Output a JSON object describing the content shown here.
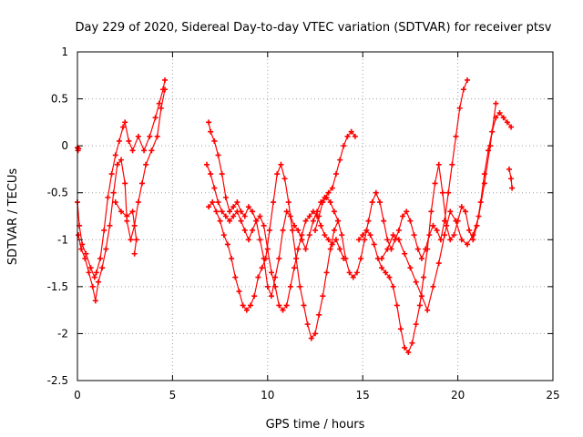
{
  "chart_data": {
    "type": "scatter",
    "title": "Day 229 of 2020, Sidereal Day-to-day VTEC variation (SDTVAR) for receiver ptsv",
    "xlabel": "GPS time / hours",
    "ylabel": "SDTVAR / TECUs",
    "xlim": [
      0,
      25
    ],
    "ylim": [
      -2.5,
      1
    ],
    "xticks": [
      0,
      5,
      10,
      15,
      20,
      25
    ],
    "yticks": [
      -2.5,
      -2,
      -1.5,
      -1,
      -0.5,
      0,
      0.5,
      1
    ],
    "xtick_labels": [
      "0",
      "5",
      "10",
      "15",
      "20",
      "25"
    ],
    "ytick_labels": [
      "-2.5",
      "-2",
      "-1.5",
      "-1",
      "-0.5",
      "0",
      "0.5",
      "1"
    ],
    "grid": true,
    "marker": "plus",
    "color": "#ff0000",
    "series": [
      {
        "name": "s1",
        "x": [
          0.0,
          0.1,
          0.25,
          0.45,
          0.7,
          0.9,
          1.0,
          1.2,
          1.4,
          1.6,
          1.8,
          2.0,
          2.2,
          2.4,
          2.5,
          2.7,
          2.9,
          3.2,
          3.5,
          3.8,
          4.1,
          4.3,
          4.5,
          4.6
        ],
        "y": [
          -0.6,
          -0.85,
          -1.05,
          -1.15,
          -1.3,
          -1.4,
          -1.35,
          -1.2,
          -0.9,
          -0.55,
          -0.3,
          -0.1,
          0.05,
          0.2,
          0.25,
          0.05,
          -0.05,
          0.1,
          -0.05,
          0.1,
          0.3,
          0.45,
          0.6,
          0.7
        ]
      },
      {
        "name": "s2",
        "x": [
          0.05,
          0.2,
          0.4,
          0.6,
          0.8,
          0.95,
          1.1,
          1.3,
          1.5,
          1.7,
          1.9,
          2.1,
          2.3,
          2.5,
          2.6,
          2.8,
          3.0,
          3.2,
          3.4,
          3.6,
          3.9,
          4.2,
          4.4,
          4.6
        ],
        "y": [
          -0.95,
          -1.1,
          -1.2,
          -1.35,
          -1.5,
          -1.65,
          -1.45,
          -1.3,
          -1.1,
          -0.85,
          -0.5,
          -0.2,
          -0.15,
          -0.4,
          -0.8,
          -1.0,
          -0.85,
          -0.6,
          -0.4,
          -0.2,
          -0.05,
          0.1,
          0.4,
          0.6
        ]
      },
      {
        "name": "s3",
        "x": [
          0.0,
          0.03,
          0.06
        ],
        "y": [
          -0.02,
          -0.05,
          -0.03
        ]
      },
      {
        "name": "s4",
        "x": [
          2.0,
          2.3,
          2.6,
          2.9,
          3.1,
          3.0
        ],
        "y": [
          -0.6,
          -0.7,
          -0.75,
          -0.7,
          -1.0,
          -1.15
        ]
      },
      {
        "name": "s5",
        "x": [
          6.9,
          7.0,
          7.2,
          7.4,
          7.6,
          7.8,
          8.0,
          8.2,
          8.4,
          8.6,
          8.8,
          9.0,
          9.2,
          9.4,
          9.6,
          9.8,
          10.0,
          10.2,
          10.4,
          10.6,
          10.8,
          11.0,
          11.2,
          11.4,
          11.6,
          11.8,
          12.0,
          12.2,
          12.4,
          12.6,
          12.8,
          13.0,
          13.2,
          13.4,
          13.6,
          13.8,
          14.0,
          14.2,
          14.4,
          14.6
        ],
        "y": [
          0.25,
          0.15,
          0.05,
          -0.1,
          -0.3,
          -0.55,
          -0.7,
          -0.65,
          -0.6,
          -0.7,
          -0.75,
          -0.65,
          -0.7,
          -0.8,
          -1.0,
          -1.2,
          -1.5,
          -1.6,
          -1.4,
          -1.2,
          -0.9,
          -0.7,
          -0.75,
          -0.85,
          -0.9,
          -1.0,
          -1.1,
          -0.95,
          -0.8,
          -0.7,
          -0.6,
          -0.55,
          -0.5,
          -0.45,
          -0.3,
          -0.15,
          0.0,
          0.1,
          0.15,
          0.1
        ]
      },
      {
        "name": "s6",
        "x": [
          6.9,
          7.1,
          7.3,
          7.5,
          7.7,
          7.9,
          8.1,
          8.3,
          8.5,
          8.7,
          8.9,
          9.1,
          9.3,
          9.5,
          9.7,
          9.9,
          10.1,
          10.3,
          10.5,
          10.7,
          10.9,
          11.1,
          11.3,
          11.5,
          11.7,
          11.9,
          12.1,
          12.3,
          12.5,
          12.7,
          12.9,
          13.1,
          13.3,
          13.5,
          13.7
        ],
        "y": [
          -0.65,
          -0.6,
          -0.7,
          -0.8,
          -0.95,
          -1.05,
          -1.2,
          -1.4,
          -1.55,
          -1.7,
          -1.75,
          -1.7,
          -1.6,
          -1.4,
          -1.3,
          -1.2,
          -0.9,
          -0.6,
          -0.3,
          -0.2,
          -0.35,
          -0.6,
          -0.9,
          -1.2,
          -1.5,
          -1.7,
          -1.9,
          -2.05,
          -2.0,
          -1.8,
          -1.6,
          -1.35,
          -1.1,
          -0.9,
          -0.8
        ]
      },
      {
        "name": "s7",
        "x": [
          6.8,
          7.0,
          7.2,
          7.4,
          7.6,
          7.8,
          8.0,
          8.2,
          8.4,
          8.6,
          8.8,
          9.0,
          9.2,
          9.4,
          9.6,
          9.8,
          10.0,
          10.2,
          10.4,
          10.6,
          10.8,
          11.0,
          11.2,
          11.4,
          11.6,
          11.8,
          12.0,
          12.2,
          12.4,
          12.6,
          12.8,
          13.0,
          13.2,
          13.4,
          13.6,
          13.8,
          14.0
        ],
        "y": [
          -0.2,
          -0.3,
          -0.45,
          -0.6,
          -0.7,
          -0.75,
          -0.8,
          -0.75,
          -0.7,
          -0.8,
          -0.9,
          -1.0,
          -0.9,
          -0.8,
          -0.75,
          -0.85,
          -1.1,
          -1.35,
          -1.5,
          -1.7,
          -1.75,
          -1.7,
          -1.5,
          -1.3,
          -1.1,
          -0.95,
          -0.8,
          -0.75,
          -0.7,
          -0.75,
          -0.85,
          -0.95,
          -1.0,
          -1.05,
          -1.0,
          -1.1,
          -1.2
        ]
      },
      {
        "name": "s8",
        "x": [
          12.5,
          12.7,
          12.9,
          13.1,
          13.3,
          13.5,
          13.7,
          13.9,
          14.1,
          14.3,
          14.5,
          14.7,
          14.9,
          15.1,
          15.3,
          15.5,
          15.7,
          15.9,
          16.1,
          16.3,
          16.5,
          16.7,
          16.9,
          17.1,
          17.3,
          17.5,
          17.7,
          17.9,
          18.1,
          18.3,
          18.5,
          18.7,
          18.9,
          19.1,
          19.3,
          19.5,
          19.7,
          19.9,
          20.1,
          20.3,
          20.5
        ],
        "y": [
          -0.9,
          -0.75,
          -0.6,
          -0.55,
          -0.6,
          -0.7,
          -0.8,
          -0.95,
          -1.2,
          -1.35,
          -1.4,
          -1.35,
          -1.2,
          -1.0,
          -0.8,
          -0.6,
          -0.5,
          -0.6,
          -0.8,
          -1.0,
          -1.1,
          -1.0,
          -0.9,
          -0.75,
          -0.7,
          -0.8,
          -0.95,
          -1.1,
          -1.2,
          -1.1,
          -0.95,
          -0.85,
          -0.9,
          -1.0,
          -0.8,
          -0.5,
          -0.2,
          0.1,
          0.4,
          0.6,
          0.7
        ]
      },
      {
        "name": "s9",
        "x": [
          14.8,
          15.0,
          15.2,
          15.4,
          15.6,
          15.8,
          16.0,
          16.2,
          16.4,
          16.6,
          16.8,
          17.0,
          17.2,
          17.4,
          17.6,
          17.8,
          18.0,
          18.2,
          18.4,
          18.6,
          18.8,
          19.0,
          19.2,
          19.4,
          19.6,
          19.8,
          20.0,
          20.2,
          20.4,
          20.6,
          20.8,
          21.0,
          21.2,
          21.4,
          21.6,
          21.8,
          22.0,
          22.2,
          22.4,
          22.6,
          22.8
        ],
        "y": [
          -1.0,
          -0.95,
          -0.9,
          -0.95,
          -1.05,
          -1.2,
          -1.3,
          -1.35,
          -1.4,
          -1.5,
          -1.7,
          -1.95,
          -2.15,
          -2.2,
          -2.1,
          -1.9,
          -1.7,
          -1.4,
          -1.1,
          -0.7,
          -0.4,
          -0.2,
          -0.5,
          -0.85,
          -1.0,
          -0.95,
          -0.8,
          -0.65,
          -0.7,
          -0.9,
          -1.0,
          -0.85,
          -0.6,
          -0.3,
          -0.05,
          0.15,
          0.3,
          0.35,
          0.3,
          0.25,
          0.2
        ]
      },
      {
        "name": "s10",
        "x": [
          16.0,
          16.3,
          16.6,
          16.9,
          17.2,
          17.5,
          17.8,
          18.1,
          18.4,
          18.7,
          19.0,
          19.3,
          19.6,
          19.9,
          20.2,
          20.5,
          20.8,
          21.1,
          21.4,
          21.7,
          22.0
        ],
        "y": [
          -1.2,
          -1.1,
          -0.95,
          -1.0,
          -1.15,
          -1.3,
          -1.45,
          -1.6,
          -1.75,
          -1.5,
          -1.25,
          -0.95,
          -0.7,
          -0.8,
          -1.0,
          -1.05,
          -0.95,
          -0.75,
          -0.4,
          0.0,
          0.45
        ]
      },
      {
        "name": "s11",
        "x": [
          22.7,
          22.8,
          22.85
        ],
        "y": [
          -0.25,
          -0.35,
          -0.45
        ]
      }
    ]
  }
}
